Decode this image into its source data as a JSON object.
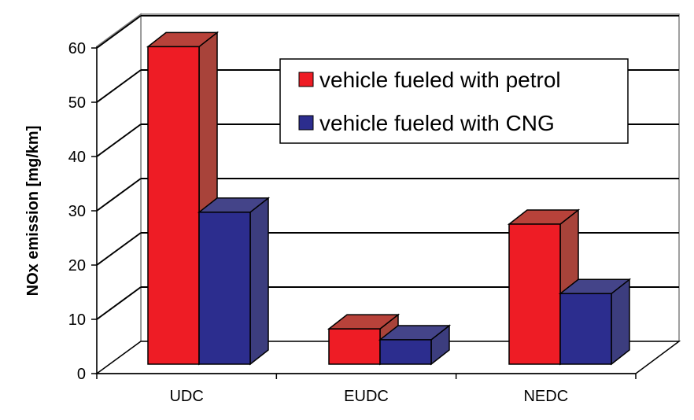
{
  "chart_data": {
    "type": "bar",
    "style": "3d-clustered",
    "categories": [
      "UDC",
      "EUDC",
      "NEDC"
    ],
    "series": [
      {
        "name": "vehicle fueled with petrol",
        "values": [
          58.5,
          6.5,
          25.8
        ],
        "color": "#ee1c25",
        "side_color": "#a8433a",
        "top_color": "#b8423a"
      },
      {
        "name": "vehicle fueled with CNG",
        "values": [
          28,
          4.5,
          13
        ],
        "color": "#2c2d8e",
        "side_color": "#3c3d7e",
        "top_color": "#444489"
      }
    ],
    "yticks": [
      "0",
      "10",
      "20",
      "30",
      "40",
      "50",
      "60"
    ],
    "ylim": [
      0,
      60
    ],
    "ylabel": "NOx emission [mg/km]",
    "xlabel": "",
    "grid": true,
    "legend_position": "top-right"
  }
}
